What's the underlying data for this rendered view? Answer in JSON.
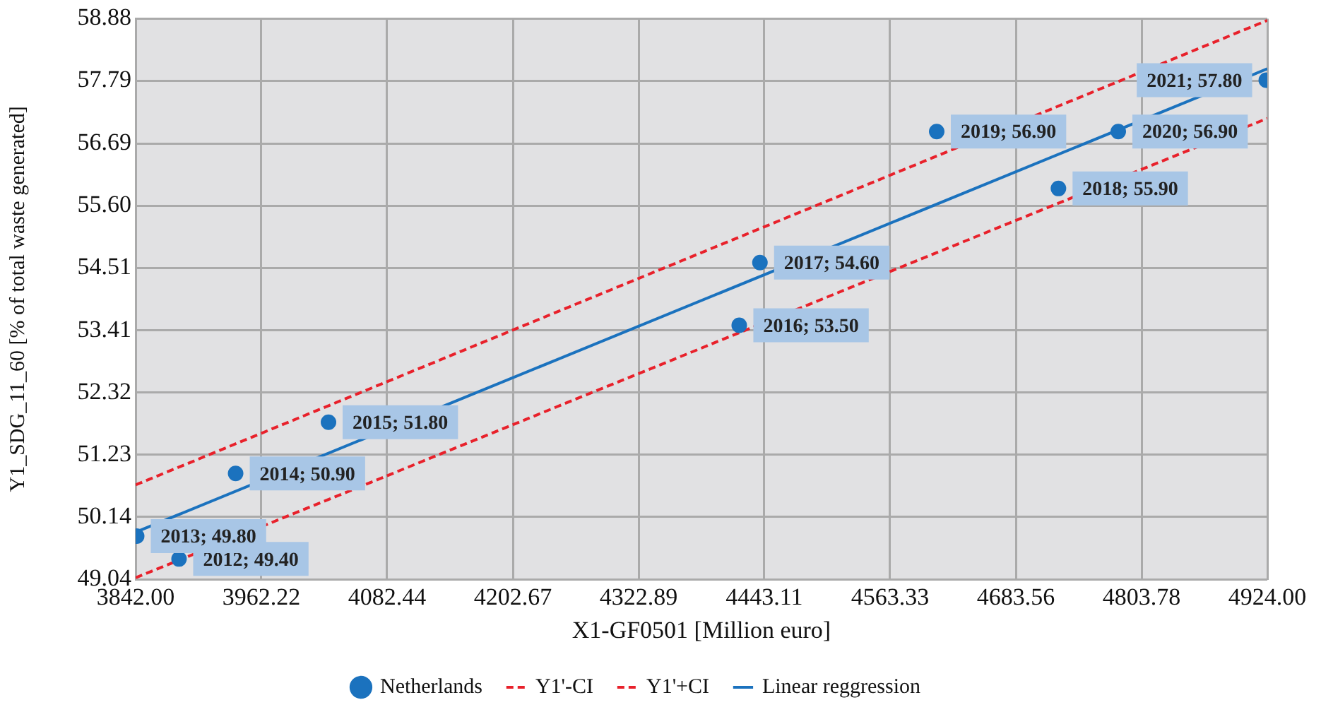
{
  "chart_data": {
    "type": "scatter",
    "xlabel": "X1-GF0501 [Million euro]",
    "ylabel": "Y1_SDG_11_60 [% of total waste generated]",
    "xlim": [
      3842,
      4924
    ],
    "ylim": [
      49.04,
      58.88
    ],
    "xticks": [
      {
        "value": 3842,
        "label": "3842.00"
      },
      {
        "value": 3962.22,
        "label": "3962.22"
      },
      {
        "value": 4082.44,
        "label": "4082.44"
      },
      {
        "value": 4202.67,
        "label": "4202.67"
      },
      {
        "value": 4322.89,
        "label": "4322.89"
      },
      {
        "value": 4443.11,
        "label": "4443.11"
      },
      {
        "value": 4563.33,
        "label": "4563.33"
      },
      {
        "value": 4683.56,
        "label": "4683.56"
      },
      {
        "value": 4803.78,
        "label": "4803.78"
      },
      {
        "value": 4924,
        "label": "4924.00"
      }
    ],
    "yticks": [
      49.04,
      50.14,
      51.23,
      52.32,
      53.41,
      54.51,
      {
        "value": 55.6,
        "label": "55.60"
      },
      56.69,
      57.79,
      58.88
    ],
    "grid": true,
    "legend": "bottom",
    "series": [
      {
        "name": "Netherlands",
        "type": "scatter",
        "color": "#1b72be",
        "marker": "circle",
        "x": [
          3883.5,
          3843,
          3937.6,
          4026.4,
          4419.1,
          4438.9,
          4724.3,
          4607.9,
          4781.5,
          4923
        ],
        "values": [
          49.4,
          49.8,
          50.9,
          51.8,
          53.5,
          54.6,
          55.9,
          56.9,
          56.9,
          57.8
        ],
        "value_labels": [
          "2012; 49.40",
          "2013; 49.80",
          "2014; 50.90",
          "2015; 51.80",
          "2016; 53.50",
          "2017; 54.60",
          "2018; 55.90",
          "2019; 56.90",
          "2020; 56.90",
          "2021; 57.80"
        ]
      },
      {
        "name": "Y1'-CI",
        "type": "line",
        "color": "#e8212b",
        "line_style": "dashed",
        "marker": "none",
        "x": [
          3842,
          4924
        ],
        "values": [
          49.07,
          57.13
        ]
      },
      {
        "name": "Y1'+CI",
        "type": "line",
        "color": "#e8212b",
        "line_style": "dashed",
        "marker": "none",
        "x": [
          3842,
          4924
        ],
        "values": [
          50.7,
          58.85
        ]
      },
      {
        "name": "Linear reggression",
        "type": "line",
        "color": "#1b72be",
        "line_style": "solid",
        "marker": "none",
        "x": [
          3842,
          4924
        ],
        "values": [
          49.87,
          58.0
        ]
      }
    ]
  }
}
